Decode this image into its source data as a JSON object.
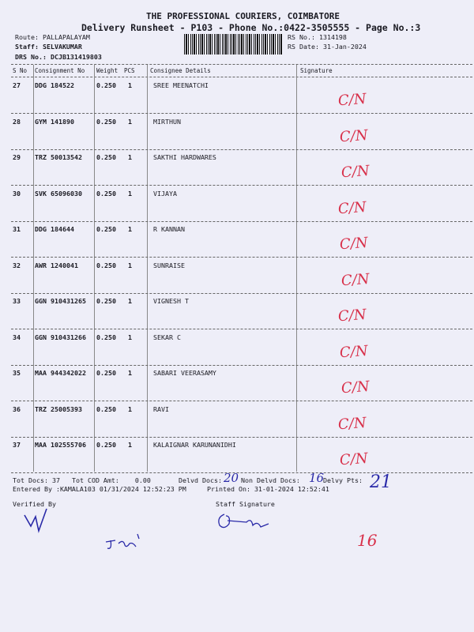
{
  "header": {
    "company": "THE PROFESSIONAL COURIERS, COIMBATORE",
    "subtitle": "Delivery Runsheet - P103 - Phone No.:0422-3505555 - Page No.:3",
    "route": "Route: PALLAPALAYAM",
    "staff": "Staff: SELVAKUMAR",
    "drs_no": "DRS No.: DCJB131419803",
    "rs_no": "RS No.: 1314198",
    "rs_date": "RS Date: 31-Jan-2024"
  },
  "table": {
    "columns": [
      "S No",
      "Consignment No",
      "Weight",
      "PCS",
      "Consignee Details",
      "Signature"
    ],
    "rows": [
      {
        "sno": "27",
        "consignment": "DDG 184522",
        "weight": "0.250",
        "pcs": "1",
        "consignee": "SREE MEENATCHI",
        "signature": "C/N"
      },
      {
        "sno": "28",
        "consignment": "GYM 141890",
        "weight": "0.250",
        "pcs": "1",
        "consignee": "MIRTHUN",
        "signature": "C/N"
      },
      {
        "sno": "29",
        "consignment": "TRZ 50013542",
        "weight": "0.250",
        "pcs": "1",
        "consignee": "SAKTHI HARDWARES",
        "signature": "C/N"
      },
      {
        "sno": "30",
        "consignment": "SVK 65096030",
        "weight": "0.250",
        "pcs": "1",
        "consignee": "VIJAYA",
        "signature": "C/N"
      },
      {
        "sno": "31",
        "consignment": "DDG 184644",
        "weight": "0.250",
        "pcs": "1",
        "consignee": "R KANNAN",
        "signature": "C/N"
      },
      {
        "sno": "32",
        "consignment": "AWR 1240041",
        "weight": "0.250",
        "pcs": "1",
        "consignee": "SUNRAISE",
        "signature": "C/N"
      },
      {
        "sno": "33",
        "consignment": "GGN 910431265",
        "weight": "0.250",
        "pcs": "1",
        "consignee": "VIGNESH T",
        "signature": "C/N"
      },
      {
        "sno": "34",
        "consignment": "GGN 910431266",
        "weight": "0.250",
        "pcs": "1",
        "consignee": "SEKAR C",
        "signature": "C/N"
      },
      {
        "sno": "35",
        "consignment": "MAA 944342022",
        "weight": "0.250",
        "pcs": "1",
        "consignee": "SABARI VEERASAMY",
        "signature": "C/N"
      },
      {
        "sno": "36",
        "consignment": "TRZ 25005393",
        "weight": "0.250",
        "pcs": "1",
        "consignee": "RAVI",
        "signature": "C/N"
      },
      {
        "sno": "37",
        "consignment": "MAA 102555706",
        "weight": "0.250",
        "pcs": "1",
        "consignee": "KALAIGNAR KARUNANIDHI",
        "signature": "C/N"
      }
    ]
  },
  "footer": {
    "tot_docs_label": "Tot Docs:",
    "tot_docs": "37",
    "tot_cod_label": "Tot COD Amt:",
    "tot_cod": "0.00",
    "delvd_label": "Delvd Docs:",
    "delvd_handwritten": "20",
    "non_delvd_label": "Non Delvd Docs:",
    "non_delvd_handwritten": "16",
    "delvy_pts_label": "Delvy Pts:",
    "delvy_pts_handwritten": "21",
    "entered_by": "Entered By :KAMALA103 01/31/2024 12:52:23 PM",
    "printed_on": "Printed On: 31-01-2024 12:52:41",
    "verified_by": "Verified By",
    "staff_signature": "Staff Signature",
    "margin_note": "16"
  },
  "colors": {
    "paper": "#eeeef8",
    "ink": "#1a1a22",
    "red_ink": "#d8304a",
    "blue_ink": "#2a2aa8"
  }
}
